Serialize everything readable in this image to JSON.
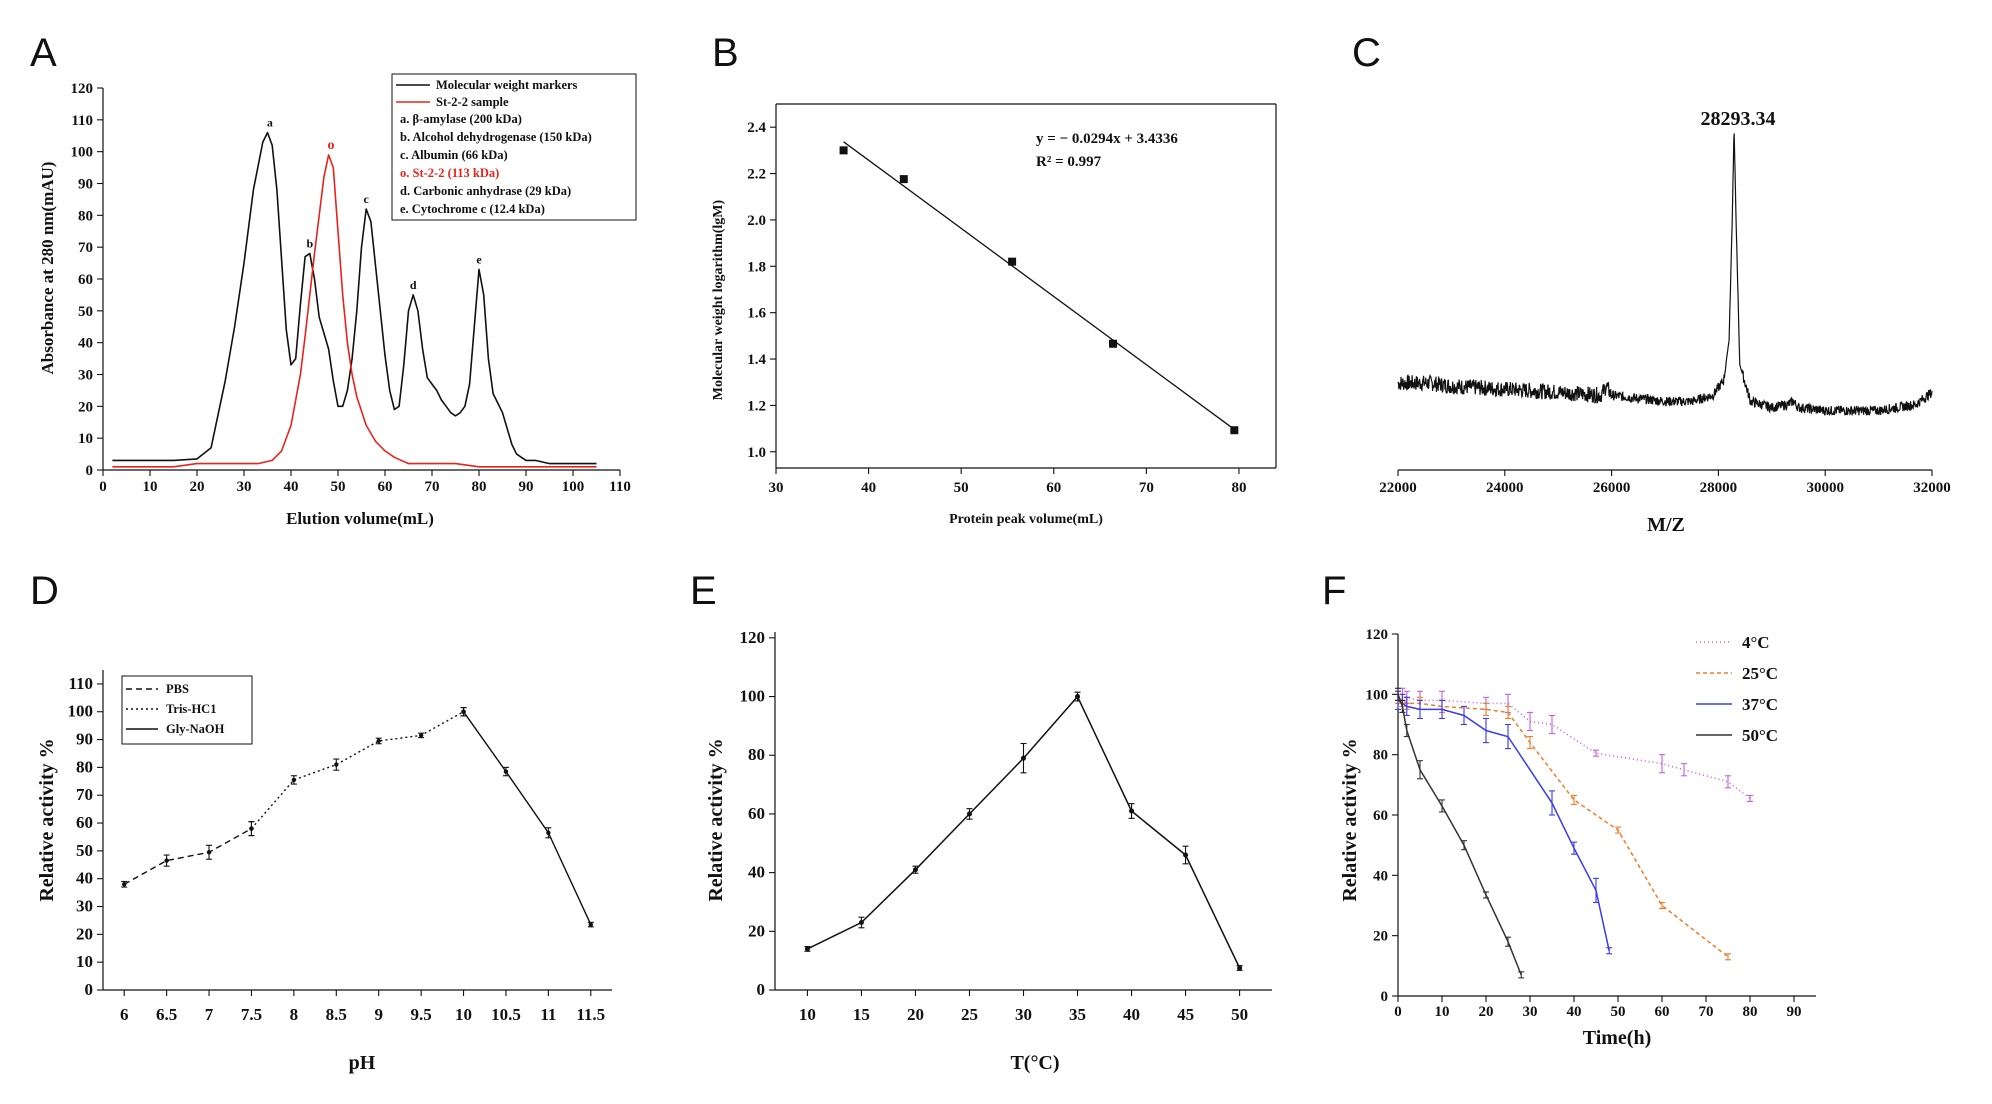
{
  "chart_data": [
    {
      "panel": "A",
      "type": "line",
      "xlabel": "Elution volume(mL)",
      "ylabel": "Absorbance at 280 nm(mAU)",
      "xlim": [
        0,
        110
      ],
      "ylim": [
        0,
        120
      ],
      "xticks": [
        0,
        10,
        20,
        30,
        40,
        50,
        60,
        70,
        80,
        90,
        100,
        110
      ],
      "yticks": [
        0,
        10,
        20,
        30,
        40,
        50,
        60,
        70,
        80,
        90,
        100,
        110,
        120
      ],
      "series": [
        {
          "name": "Molecular weight markers",
          "color": "#111111",
          "x": [
            2,
            8,
            15,
            20,
            23,
            26,
            28,
            30,
            32,
            34,
            35,
            36,
            37,
            38,
            39,
            40,
            41,
            42,
            43,
            44,
            45,
            46,
            47,
            48,
            49,
            50,
            51,
            52,
            53,
            54,
            55,
            56,
            57,
            58,
            59,
            60,
            61,
            62,
            63,
            64,
            65,
            66,
            67,
            68,
            69,
            70,
            71,
            72,
            73,
            74,
            75,
            76,
            77,
            78,
            79,
            80,
            81,
            82,
            83,
            84,
            85,
            86,
            87,
            88,
            90,
            92,
            95,
            100,
            105
          ],
          "y": [
            3,
            3,
            3,
            3.5,
            7,
            28,
            45,
            65,
            88,
            103,
            106,
            102,
            88,
            66,
            44,
            33,
            35,
            52,
            67,
            68,
            60,
            48,
            43,
            38,
            28,
            20,
            20,
            25,
            35,
            50,
            70,
            82,
            78,
            64,
            50,
            36,
            25,
            19,
            20,
            33,
            50,
            55,
            50,
            38,
            29,
            27,
            25,
            22,
            20,
            18,
            17,
            18,
            20,
            27,
            45,
            63,
            55,
            35,
            24,
            21,
            18,
            13,
            8,
            5,
            3,
            3,
            2,
            2,
            2
          ]
        },
        {
          "name": "St-2-2 sample",
          "color": "#e8231c",
          "x": [
            2,
            15,
            20,
            25,
            30,
            33,
            36,
            38,
            40,
            42,
            43,
            44,
            45,
            46,
            47,
            48,
            49,
            50,
            51,
            52,
            53,
            54,
            56,
            58,
            60,
            62,
            65,
            70,
            75,
            80,
            85,
            90,
            95,
            100,
            105
          ],
          "y": [
            1,
            1,
            2,
            2,
            2,
            2,
            3,
            6,
            14,
            30,
            42,
            55,
            68,
            80,
            92,
            99,
            95,
            75,
            55,
            40,
            30,
            23,
            14,
            9,
            6,
            4,
            2,
            2,
            2,
            1,
            1,
            1,
            1,
            1,
            1
          ]
        }
      ],
      "peak_labels": [
        {
          "text": "a",
          "x": 35.5,
          "y": 106
        },
        {
          "text": "b",
          "x": 44,
          "y": 68
        },
        {
          "text": "o",
          "x": 48.5,
          "y": 99
        },
        {
          "text": "c",
          "x": 56,
          "y": 82
        },
        {
          "text": "d",
          "x": 66,
          "y": 55
        },
        {
          "text": "e",
          "x": 80,
          "y": 63
        }
      ],
      "legend": [
        {
          "text": "Molecular weight markers",
          "line": "#111111",
          "color": "#111111"
        },
        {
          "text": "St-2-2 sample",
          "line": "#e8231c",
          "color": "#111111"
        },
        {
          "text": "a. β-amylase (200 kDa)",
          "color": "#111111"
        },
        {
          "text": "b. Alcohol dehydrogenase (150 kDa)",
          "color": "#111111"
        },
        {
          "text": "c. Albumin (66 kDa)",
          "color": "#111111"
        },
        {
          "text": "o. St-2-2 (113 kDa)",
          "color": "#e8231c"
        },
        {
          "text": "d. Carbonic anhydrase (29 kDa)",
          "color": "#111111"
        },
        {
          "text": "e. Cytochrome c (12.4 kDa)",
          "color": "#111111"
        }
      ]
    },
    {
      "panel": "B",
      "type": "scatter",
      "xlabel": "Protein peak volume(mL)",
      "ylabel": "Molecular weight logarithm(lgM)",
      "xlim": [
        30,
        84
      ],
      "ylim": [
        0.93,
        2.5
      ],
      "xticks": [
        30,
        40,
        50,
        60,
        70,
        80
      ],
      "yticks": [
        1.0,
        1.2,
        1.4,
        1.6,
        1.8,
        2.0,
        2.2,
        2.4
      ],
      "x": [
        37.3,
        43.8,
        55.5,
        66.4,
        79.5
      ],
      "y": [
        2.3,
        2.176,
        1.82,
        1.466,
        1.093
      ],
      "fit": {
        "slope": -0.0294,
        "intercept": 3.4336,
        "x_range": [
          37.3,
          79.5
        ]
      },
      "equation": "y = − 0.0294x + 3.4336",
      "r2": "R² = 0.997"
    },
    {
      "panel": "C",
      "type": "line",
      "xlabel": "M/Z",
      "xlim": [
        22000,
        32000
      ],
      "ylim": [
        0,
        100
      ],
      "xticks": [
        22000,
        24000,
        26000,
        28000,
        30000,
        32000
      ],
      "peak_label": "28293.34",
      "peak_x": 28293.34,
      "baseline": [
        [
          22000,
          16
        ],
        [
          22600,
          16
        ],
        [
          23000,
          15
        ],
        [
          24000,
          14
        ],
        [
          25000,
          13
        ],
        [
          25800,
          12
        ],
        [
          25900,
          15
        ],
        [
          26000,
          12
        ],
        [
          27000,
          10
        ],
        [
          27500,
          10
        ],
        [
          27900,
          12
        ],
        [
          28100,
          17
        ],
        [
          28200,
          30
        ],
        [
          28260,
          70
        ],
        [
          28293,
          100
        ],
        [
          28330,
          70
        ],
        [
          28400,
          22
        ],
        [
          28600,
          10
        ],
        [
          29000,
          8
        ],
        [
          29300,
          9
        ],
        [
          29400,
          10
        ],
        [
          29500,
          8
        ],
        [
          30000,
          7
        ],
        [
          31000,
          7
        ],
        [
          31700,
          9
        ],
        [
          32000,
          13
        ]
      ]
    },
    {
      "panel": "D",
      "type": "line",
      "xlabel": "pH",
      "ylabel": "Relative activity %",
      "ylim": [
        0,
        115
      ],
      "categories": [
        "6",
        "6.5",
        "7",
        "7.5",
        "8",
        "8.5",
        "9",
        "9.5",
        "10",
        "10.5",
        "11",
        "11.5"
      ],
      "yticks": [
        0,
        10,
        20,
        30,
        40,
        50,
        60,
        70,
        80,
        90,
        100,
        110
      ],
      "series": [
        {
          "name": "PBS",
          "dash": "6,4",
          "x": [
            0,
            1,
            2,
            3
          ],
          "y": [
            38,
            46.5,
            49.5,
            58
          ],
          "err": [
            1,
            2,
            2.5,
            2.5
          ]
        },
        {
          "name": "Tris-HC1",
          "dash": "2,3",
          "x": [
            3,
            4,
            5,
            6,
            7,
            8
          ],
          "y": [
            58,
            75.5,
            81,
            89.5,
            91.5,
            100
          ],
          "err": [
            2.5,
            1.5,
            2,
            1,
            0.8,
            1.5
          ]
        },
        {
          "name": "Gly-NaOH",
          "dash": "",
          "x": [
            8,
            9,
            10,
            11
          ],
          "y": [
            100,
            78.5,
            56.5,
            23.5
          ],
          "err": [
            1.5,
            1.5,
            1.8,
            0.8
          ]
        }
      ]
    },
    {
      "panel": "E",
      "type": "line",
      "xlabel": "T(°C)",
      "ylabel": "Relative activity %",
      "ylim": [
        0,
        122
      ],
      "categories": [
        "10",
        "15",
        "20",
        "25",
        "30",
        "35",
        "40",
        "45",
        "50"
      ],
      "yticks": [
        0,
        20,
        40,
        60,
        80,
        100,
        120
      ],
      "x": [
        0,
        1,
        2,
        3,
        4,
        5,
        6,
        7,
        8
      ],
      "y": [
        14,
        23,
        41,
        60,
        79,
        100,
        61,
        46,
        7.5
      ],
      "err": [
        0.8,
        1.8,
        1.2,
        1.8,
        5,
        1.5,
        2.5,
        3,
        0.8
      ]
    },
    {
      "panel": "F",
      "type": "line",
      "xlabel": "Time(h)",
      "ylabel": "Relative activity %",
      "xlim": [
        0,
        95
      ],
      "ylim": [
        0,
        120
      ],
      "xticks": [
        0,
        10,
        20,
        30,
        40,
        50,
        60,
        70,
        80,
        90
      ],
      "yticks": [
        0,
        20,
        40,
        60,
        80,
        100,
        120
      ],
      "series": [
        {
          "name": "4°C",
          "color": "#c261e0",
          "dash": "1,3",
          "x": [
            0,
            1,
            2,
            5,
            10,
            20,
            25,
            30,
            35,
            45,
            60,
            65,
            75,
            80
          ],
          "y": [
            100,
            100,
            99,
            98,
            98,
            97,
            97,
            91,
            90,
            80.5,
            77,
            75,
            71,
            65.5
          ],
          "err": [
            2,
            2,
            2,
            3,
            3,
            2,
            3,
            3,
            3,
            1,
            3,
            2,
            2,
            1
          ]
        },
        {
          "name": "25°C",
          "color": "#f07d28",
          "dash": "4,3",
          "x": [
            0,
            1,
            2,
            5,
            10,
            20,
            25,
            30,
            40,
            50,
            60,
            75
          ],
          "y": [
            99,
            98,
            97,
            97,
            96,
            95,
            94,
            84,
            65,
            55,
            30,
            13
          ],
          "err": [
            2,
            2,
            2,
            2,
            2,
            2,
            2,
            2,
            1.5,
            1,
            1,
            1
          ]
        },
        {
          "name": "37°C",
          "color": "#3b3bf0",
          "dash": "",
          "x": [
            0,
            1,
            2,
            5,
            10,
            15,
            20,
            25,
            35,
            40,
            45,
            48
          ],
          "y": [
            98,
            97,
            96,
            95,
            95,
            93,
            88,
            86,
            64,
            49,
            35,
            15
          ],
          "err": [
            3,
            3,
            3,
            3,
            3,
            3,
            4,
            4,
            4,
            2,
            4,
            1
          ]
        },
        {
          "name": "50°C",
          "color": "#333333",
          "dash": "",
          "x": [
            0,
            1,
            2,
            5,
            10,
            15,
            20,
            25,
            28
          ],
          "y": [
            100,
            96,
            88,
            75,
            63,
            50,
            33.5,
            18,
            7
          ],
          "err": [
            2,
            2,
            2,
            3,
            2,
            1.5,
            1,
            1.5,
            1
          ]
        }
      ]
    }
  ]
}
